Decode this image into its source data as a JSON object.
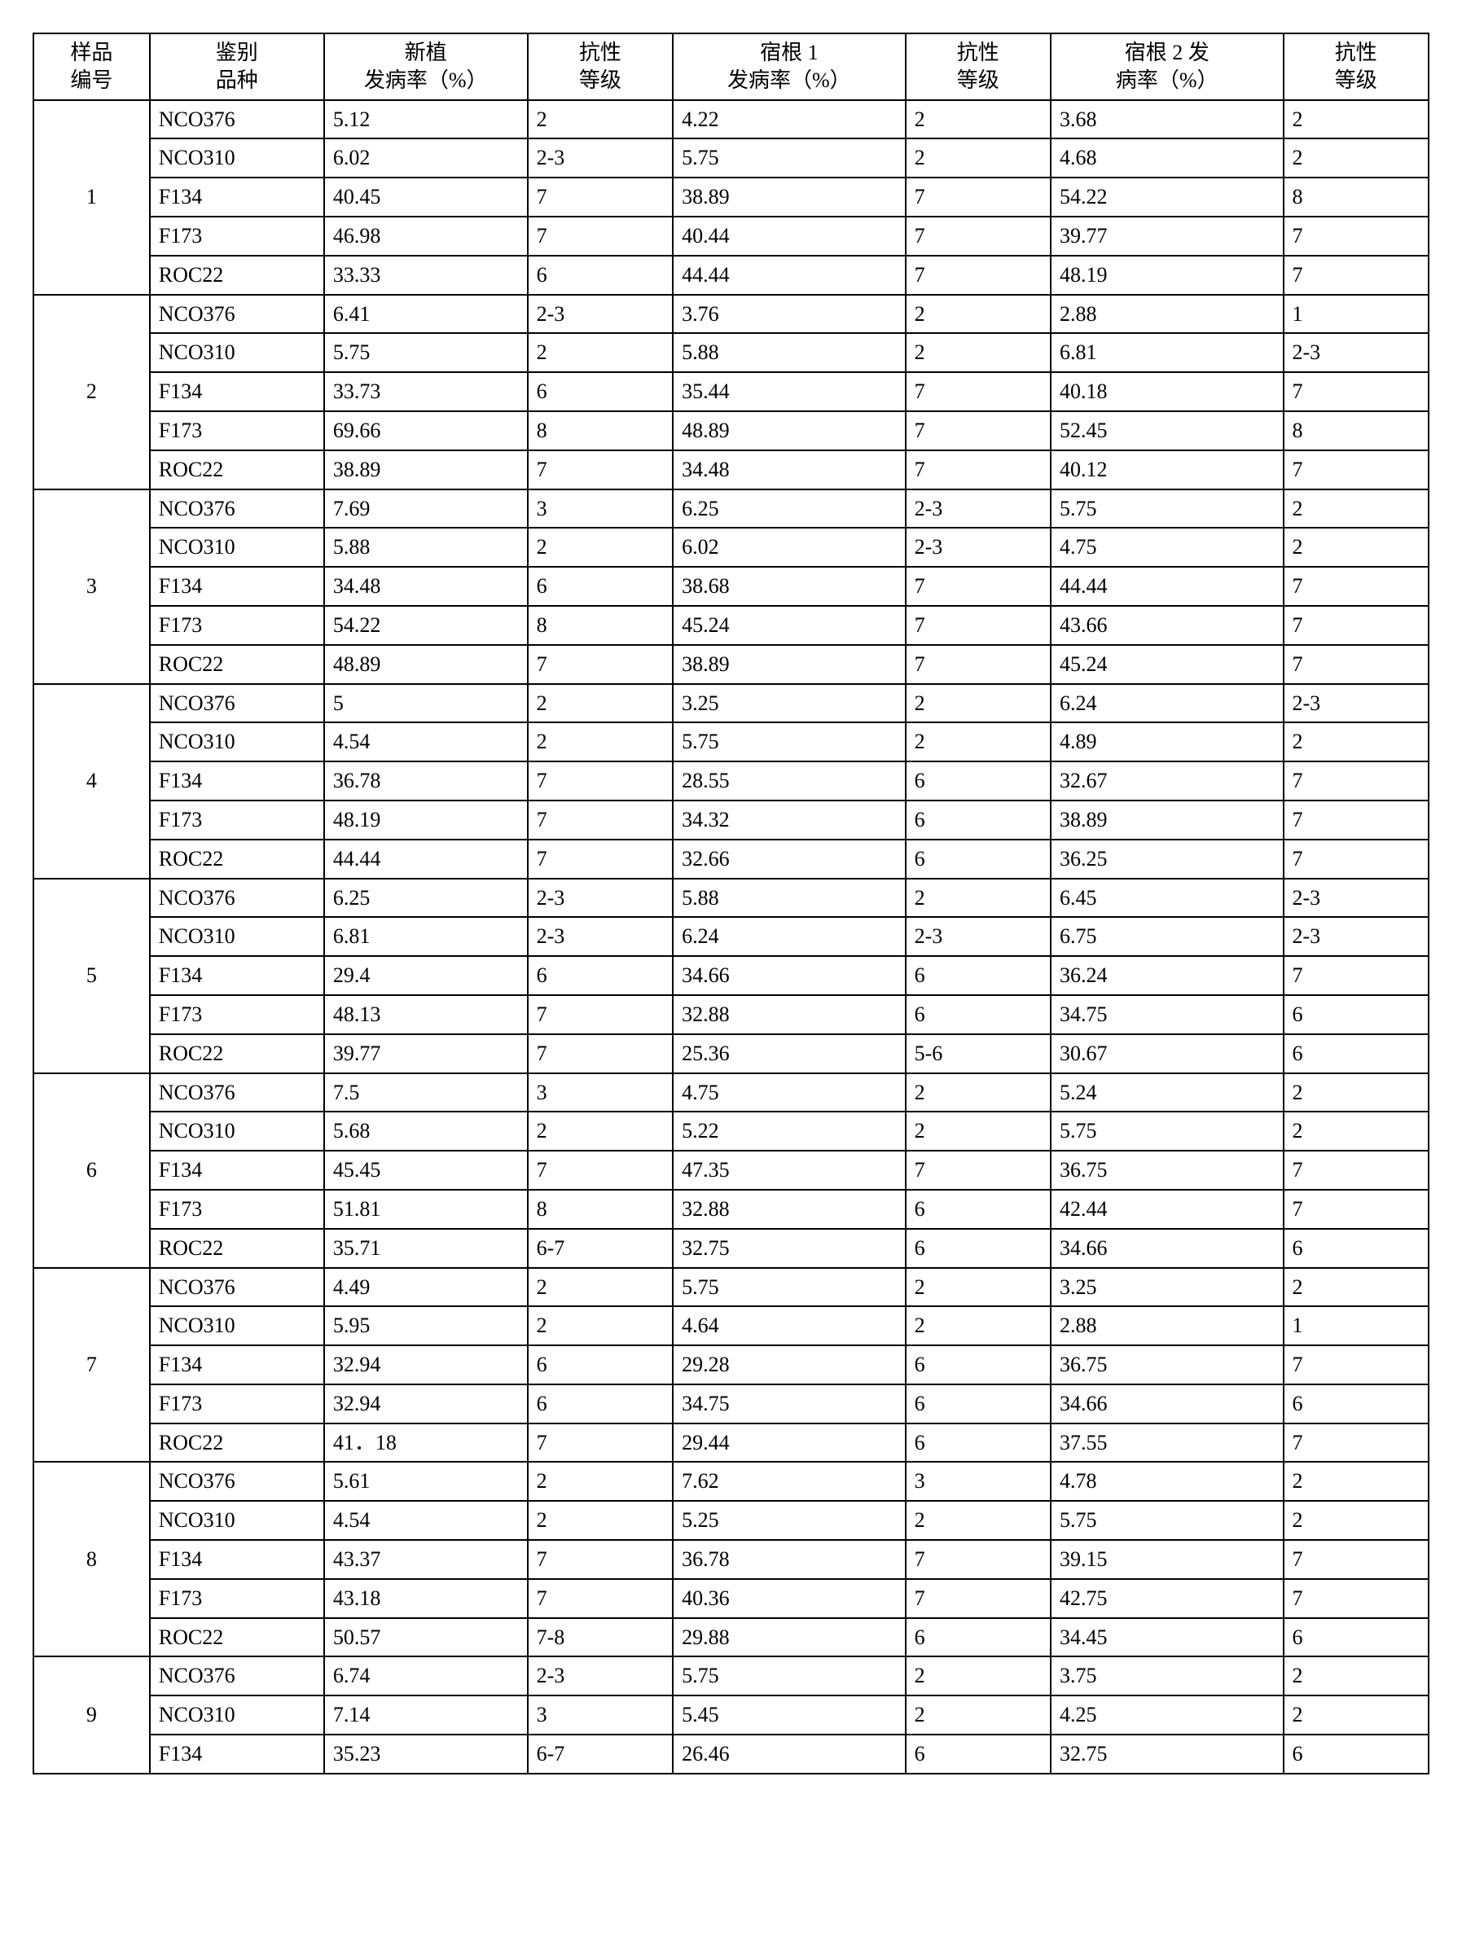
{
  "table": {
    "type": "table",
    "border_color": "#000000",
    "background_color": "#ffffff",
    "text_color": "#000000",
    "font_family": "SimSun",
    "header_fontsize": 26,
    "cell_fontsize": 26,
    "columns": [
      {
        "line1": "样品",
        "line2": "编号"
      },
      {
        "line1": "鉴别",
        "line2": "品种"
      },
      {
        "line1": "新植",
        "line2": "发病率（%）"
      },
      {
        "line1": "抗性",
        "line2": "等级"
      },
      {
        "line1": "宿根 1",
        "line2": "发病率（%）"
      },
      {
        "line1": "抗性",
        "line2": "等级"
      },
      {
        "line1": "宿根 2 发",
        "line2": "病率（%）"
      },
      {
        "line1": "抗性",
        "line2": "等级"
      }
    ],
    "col_widths_pct": [
      8,
      12,
      14,
      10,
      16,
      10,
      16,
      10
    ],
    "groups": [
      {
        "sample_id": "1",
        "rows": [
          {
            "variety": "NCO376",
            "np_rate": "5.12",
            "np_grade": "2",
            "s1_rate": "4.22",
            "s1_grade": "2",
            "s2_rate": "3.68",
            "s2_grade": "2"
          },
          {
            "variety": "NCO310",
            "np_rate": "6.02",
            "np_grade": "2-3",
            "s1_rate": "5.75",
            "s1_grade": "2",
            "s2_rate": "4.68",
            "s2_grade": "2"
          },
          {
            "variety": "F134",
            "np_rate": "40.45",
            "np_grade": "7",
            "s1_rate": "38.89",
            "s1_grade": "7",
            "s2_rate": "54.22",
            "s2_grade": "8"
          },
          {
            "variety": "F173",
            "np_rate": "46.98",
            "np_grade": "7",
            "s1_rate": "40.44",
            "s1_grade": "7",
            "s2_rate": "39.77",
            "s2_grade": "7"
          },
          {
            "variety": "ROC22",
            "np_rate": "33.33",
            "np_grade": "6",
            "s1_rate": "44.44",
            "s1_grade": "7",
            "s2_rate": "48.19",
            "s2_grade": "7"
          }
        ]
      },
      {
        "sample_id": "2",
        "rows": [
          {
            "variety": "NCO376",
            "np_rate": "6.41",
            "np_grade": "2-3",
            "s1_rate": "3.76",
            "s1_grade": "2",
            "s2_rate": "2.88",
            "s2_grade": "1"
          },
          {
            "variety": "NCO310",
            "np_rate": "5.75",
            "np_grade": "2",
            "s1_rate": "5.88",
            "s1_grade": "2",
            "s2_rate": "6.81",
            "s2_grade": "2-3"
          },
          {
            "variety": "F134",
            "np_rate": "33.73",
            "np_grade": "6",
            "s1_rate": "35.44",
            "s1_grade": "7",
            "s2_rate": "40.18",
            "s2_grade": "7"
          },
          {
            "variety": "F173",
            "np_rate": "69.66",
            "np_grade": "8",
            "s1_rate": "48.89",
            "s1_grade": "7",
            "s2_rate": "52.45",
            "s2_grade": "8"
          },
          {
            "variety": "ROC22",
            "np_rate": "38.89",
            "np_grade": "7",
            "s1_rate": "34.48",
            "s1_grade": "7",
            "s2_rate": "40.12",
            "s2_grade": "7"
          }
        ]
      },
      {
        "sample_id": "3",
        "rows": [
          {
            "variety": "NCO376",
            "np_rate": "7.69",
            "np_grade": "3",
            "s1_rate": "6.25",
            "s1_grade": "2-3",
            "s2_rate": "5.75",
            "s2_grade": "2"
          },
          {
            "variety": "NCO310",
            "np_rate": "5.88",
            "np_grade": "2",
            "s1_rate": "6.02",
            "s1_grade": "2-3",
            "s2_rate": "4.75",
            "s2_grade": "2"
          },
          {
            "variety": "F134",
            "np_rate": "34.48",
            "np_grade": "6",
            "s1_rate": "38.68",
            "s1_grade": "7",
            "s2_rate": "44.44",
            "s2_grade": "7"
          },
          {
            "variety": "F173",
            "np_rate": "54.22",
            "np_grade": "8",
            "s1_rate": "45.24",
            "s1_grade": "7",
            "s2_rate": "43.66",
            "s2_grade": "7"
          },
          {
            "variety": "ROC22",
            "np_rate": "48.89",
            "np_grade": "7",
            "s1_rate": "38.89",
            "s1_grade": "7",
            "s2_rate": "45.24",
            "s2_grade": "7"
          }
        ]
      },
      {
        "sample_id": "4",
        "rows": [
          {
            "variety": "NCO376",
            "np_rate": "5",
            "np_grade": "2",
            "s1_rate": "3.25",
            "s1_grade": "2",
            "s2_rate": "6.24",
            "s2_grade": "2-3"
          },
          {
            "variety": "NCO310",
            "np_rate": "4.54",
            "np_grade": "2",
            "s1_rate": "5.75",
            "s1_grade": "2",
            "s2_rate": "4.89",
            "s2_grade": "2"
          },
          {
            "variety": "F134",
            "np_rate": "36.78",
            "np_grade": "7",
            "s1_rate": "28.55",
            "s1_grade": "6",
            "s2_rate": "32.67",
            "s2_grade": "7"
          },
          {
            "variety": "F173",
            "np_rate": "48.19",
            "np_grade": "7",
            "s1_rate": "34.32",
            "s1_grade": "6",
            "s2_rate": "38.89",
            "s2_grade": "7"
          },
          {
            "variety": "ROC22",
            "np_rate": "44.44",
            "np_grade": "7",
            "s1_rate": "32.66",
            "s1_grade": "6",
            "s2_rate": "36.25",
            "s2_grade": "7"
          }
        ]
      },
      {
        "sample_id": "5",
        "rows": [
          {
            "variety": "NCO376",
            "np_rate": "6.25",
            "np_grade": "2-3",
            "s1_rate": "5.88",
            "s1_grade": "2",
            "s2_rate": "6.45",
            "s2_grade": "2-3"
          },
          {
            "variety": "NCO310",
            "np_rate": "6.81",
            "np_grade": "2-3",
            "s1_rate": "6.24",
            "s1_grade": "2-3",
            "s2_rate": "6.75",
            "s2_grade": "2-3"
          },
          {
            "variety": "F134",
            "np_rate": "29.4",
            "np_grade": "6",
            "s1_rate": "34.66",
            "s1_grade": "6",
            "s2_rate": "36.24",
            "s2_grade": "7"
          },
          {
            "variety": "F173",
            "np_rate": "48.13",
            "np_grade": "7",
            "s1_rate": "32.88",
            "s1_grade": "6",
            "s2_rate": "34.75",
            "s2_grade": "6"
          },
          {
            "variety": "ROC22",
            "np_rate": "39.77",
            "np_grade": "7",
            "s1_rate": "25.36",
            "s1_grade": "5-6",
            "s2_rate": "30.67",
            "s2_grade": "6"
          }
        ]
      },
      {
        "sample_id": "6",
        "rows": [
          {
            "variety": "NCO376",
            "np_rate": "7.5",
            "np_grade": "3",
            "s1_rate": "4.75",
            "s1_grade": "2",
            "s2_rate": "5.24",
            "s2_grade": "2"
          },
          {
            "variety": "NCO310",
            "np_rate": "5.68",
            "np_grade": "2",
            "s1_rate": "5.22",
            "s1_grade": "2",
            "s2_rate": "5.75",
            "s2_grade": "2"
          },
          {
            "variety": "F134",
            "np_rate": "45.45",
            "np_grade": "7",
            "s1_rate": "47.35",
            "s1_grade": "7",
            "s2_rate": "36.75",
            "s2_grade": "7"
          },
          {
            "variety": "F173",
            "np_rate": "51.81",
            "np_grade": "8",
            "s1_rate": "32.88",
            "s1_grade": "6",
            "s2_rate": "42.44",
            "s2_grade": "7"
          },
          {
            "variety": "ROC22",
            "np_rate": "35.71",
            "np_grade": "6-7",
            "s1_rate": "32.75",
            "s1_grade": "6",
            "s2_rate": "34.66",
            "s2_grade": "6"
          }
        ]
      },
      {
        "sample_id": "7",
        "rows": [
          {
            "variety": "NCO376",
            "np_rate": "4.49",
            "np_grade": "2",
            "s1_rate": "5.75",
            "s1_grade": "2",
            "s2_rate": "3.25",
            "s2_grade": "2"
          },
          {
            "variety": "NCO310",
            "np_rate": "5.95",
            "np_grade": "2",
            "s1_rate": "4.64",
            "s1_grade": "2",
            "s2_rate": "2.88",
            "s2_grade": "1"
          },
          {
            "variety": "F134",
            "np_rate": "32.94",
            "np_grade": "6",
            "s1_rate": "29.28",
            "s1_grade": "6",
            "s2_rate": "36.75",
            "s2_grade": "7"
          },
          {
            "variety": "F173",
            "np_rate": "32.94",
            "np_grade": "6",
            "s1_rate": "34.75",
            "s1_grade": "6",
            "s2_rate": "34.66",
            "s2_grade": "6"
          },
          {
            "variety": "ROC22",
            "np_rate": "41．18",
            "np_grade": "7",
            "s1_rate": "29.44",
            "s1_grade": "6",
            "s2_rate": "37.55",
            "s2_grade": "7"
          }
        ]
      },
      {
        "sample_id": "8",
        "rows": [
          {
            "variety": "NCO376",
            "np_rate": "5.61",
            "np_grade": "2",
            "s1_rate": "7.62",
            "s1_grade": "3",
            "s2_rate": "4.78",
            "s2_grade": "2"
          },
          {
            "variety": "NCO310",
            "np_rate": "4.54",
            "np_grade": "2",
            "s1_rate": "5.25",
            "s1_grade": "2",
            "s2_rate": "5.75",
            "s2_grade": "2"
          },
          {
            "variety": "F134",
            "np_rate": "43.37",
            "np_grade": "7",
            "s1_rate": "36.78",
            "s1_grade": "7",
            "s2_rate": "39.15",
            "s2_grade": "7"
          },
          {
            "variety": "F173",
            "np_rate": "43.18",
            "np_grade": "7",
            "s1_rate": "40.36",
            "s1_grade": "7",
            "s2_rate": "42.75",
            "s2_grade": "7"
          },
          {
            "variety": "ROC22",
            "np_rate": "50.57",
            "np_grade": "7-8",
            "s1_rate": "29.88",
            "s1_grade": "6",
            "s2_rate": "34.45",
            "s2_grade": "6"
          }
        ]
      },
      {
        "sample_id": "9",
        "rows": [
          {
            "variety": "NCO376",
            "np_rate": "6.74",
            "np_grade": "2-3",
            "s1_rate": "5.75",
            "s1_grade": "2",
            "s2_rate": "3.75",
            "s2_grade": "2"
          },
          {
            "variety": "NCO310",
            "np_rate": "7.14",
            "np_grade": "3",
            "s1_rate": "5.45",
            "s1_grade": "2",
            "s2_rate": "4.25",
            "s2_grade": "2"
          },
          {
            "variety": "F134",
            "np_rate": "35.23",
            "np_grade": "6-7",
            "s1_rate": "26.46",
            "s1_grade": "6",
            "s2_rate": "32.75",
            "s2_grade": "6"
          }
        ]
      }
    ]
  }
}
